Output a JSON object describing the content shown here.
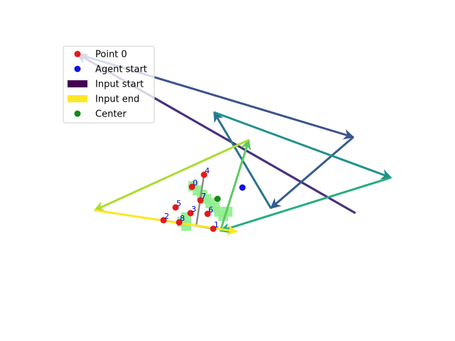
{
  "chart_data": {
    "type": "scatter",
    "title": "",
    "xlabel": "",
    "ylabel": "",
    "axes_visible": false,
    "grid": false,
    "xlim": [
      0,
      640
    ],
    "ylim": [
      480,
      0
    ],
    "legend": {
      "placement": "top-left",
      "entries": [
        {
          "label": "Point 0",
          "marker": "circle",
          "color": "#e41a1c"
        },
        {
          "label": "Agent start",
          "marker": "circle",
          "color": "#1010e0"
        },
        {
          "label": "Input start",
          "marker": "rect",
          "color": "#440154"
        },
        {
          "label": "Input end",
          "marker": "rect",
          "color": "#fde725"
        },
        {
          "label": "Center",
          "marker": "circle",
          "color": "#128a12"
        }
      ]
    },
    "points": [
      {
        "label": "0",
        "x": 270,
        "y": 263,
        "color": "#e41a1c"
      },
      {
        "label": "1",
        "x": 300,
        "y": 322,
        "color": "#e41a1c"
      },
      {
        "label": "2",
        "x": 230,
        "y": 310,
        "color": "#e41a1c"
      },
      {
        "label": "3",
        "x": 268,
        "y": 300,
        "color": "#e41a1c"
      },
      {
        "label": "4",
        "x": 287,
        "y": 246,
        "color": "#e41a1c"
      },
      {
        "label": "5",
        "x": 247,
        "y": 292,
        "color": "#e41a1c"
      },
      {
        "label": "6",
        "x": 292,
        "y": 301,
        "color": "#e41a1c"
      },
      {
        "label": "7",
        "x": 282,
        "y": 282,
        "color": "#e41a1c"
      },
      {
        "label": "8",
        "x": 252,
        "y": 313,
        "color": "#e41a1c"
      }
    ],
    "agent_start": {
      "x": 341,
      "y": 264,
      "color": "#1010e0"
    },
    "center": {
      "x": 306,
      "y": 280,
      "color": "#128a12"
    },
    "point0_extra": {
      "x": 109,
      "y": 76,
      "color": "#e41a1c"
    },
    "input_start_line": {
      "x1": 109,
      "y1": 76,
      "x2": 500,
      "y2": 300,
      "color": "#440154"
    },
    "trajectory": {
      "points": [
        [
          500,
          300
        ],
        [
          109,
          76
        ],
        [
          497,
          193
        ],
        [
          381,
          293
        ],
        [
          301,
          158
        ],
        [
          550,
          250
        ],
        [
          310,
          325
        ],
        [
          350,
          197
        ],
        [
          133,
          296
        ],
        [
          333,
          326
        ]
      ],
      "colors": [
        "#46327e",
        "#3b528b",
        "#365c8d",
        "#2c728e",
        "#21918c",
        "#27ad81",
        "#5ec962",
        "#addc30",
        "#fde725"
      ]
    },
    "grey_segments": [
      [
        [
          287,
          246
        ],
        [
          276,
          318
        ]
      ],
      [
        [
          230,
          310
        ],
        [
          300,
          322
        ]
      ]
    ],
    "shaded_region": {
      "color": "#90ee90",
      "cells": [
        [
          272,
          262
        ],
        [
          278,
          268
        ],
        [
          284,
          274
        ],
        [
          290,
          280
        ],
        [
          296,
          286
        ],
        [
          302,
          292
        ],
        [
          308,
          298
        ],
        [
          314,
          304
        ],
        [
          320,
          298
        ],
        [
          262,
          318
        ],
        [
          256,
          312
        ],
        [
          262,
          306
        ]
      ]
    }
  }
}
